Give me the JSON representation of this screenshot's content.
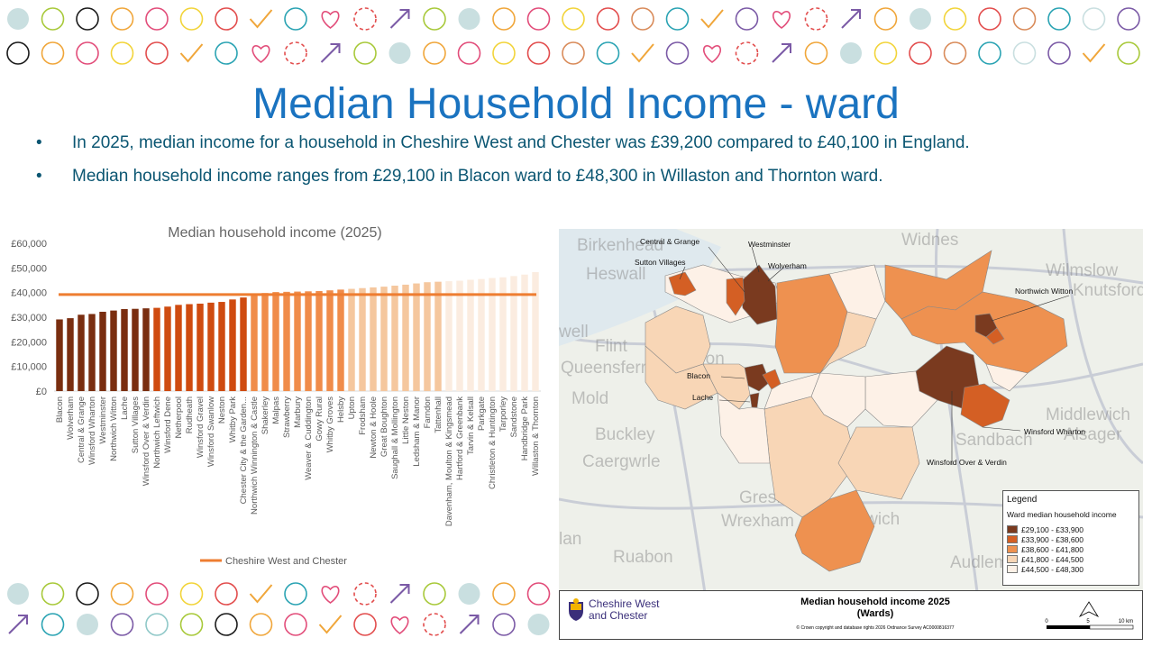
{
  "title": "Median Household Income - ward",
  "bullets": [
    "In 2025, median income for a household in Cheshire West and Chester was £39,200 compared to £40,100 in England.",
    "Median household income ranges from £29,100 in Blacon ward to £48,300 in Willaston and Thornton ward."
  ],
  "bullet_symbol": "•",
  "chart_data": {
    "type": "bar",
    "title": "Median household income (2025)",
    "xlabel": "",
    "ylabel": "",
    "ylim": [
      0,
      60000
    ],
    "yticks": [
      "£0",
      "£10,000",
      "£20,000",
      "£30,000",
      "£40,000",
      "£50,000",
      "£60,000"
    ],
    "categories": [
      "Blacon",
      "Wolverham",
      "Central & Grange",
      "Winsford Wharton",
      "Westminster",
      "Northwich Witton",
      "Lache",
      "Sutton Villages",
      "Winsford Over & Verdin",
      "Northwich Leftwich",
      "Winsford Dene",
      "Netherpool",
      "Rudheath",
      "Winsford Gravel",
      "Winsford Swanlow",
      "Neston",
      "Whitby Park",
      "Chester City & the Garden...",
      "Northwich Winnington & Castle",
      "Shakerley",
      "Malpas",
      "Strawberry",
      "Marbury",
      "Weaver & Cuddington",
      "Gowy Rural",
      "Whitby Groves",
      "Helsby",
      "Upton",
      "Frodsham",
      "Newton & Hoole",
      "Great Boughton",
      "Saughall & Mollington",
      "Little Neston",
      "Ledsham & Manor",
      "Farndon",
      "Tattenhall",
      "Davenham, Moulton & Kingsmead",
      "Hartford & Greenbank",
      "Tarvin & Kelsall",
      "Parkgate",
      "Christleton & Huntington",
      "Tarporley",
      "Sandstone",
      "Handbridge Park",
      "Willaston & Thornton"
    ],
    "values": [
      29100,
      29600,
      31000,
      31300,
      32200,
      32700,
      33300,
      33400,
      33600,
      33800,
      34300,
      35000,
      35300,
      35500,
      35900,
      36200,
      37200,
      38000,
      38900,
      39800,
      40200,
      40300,
      40400,
      40500,
      40600,
      40900,
      41200,
      41500,
      41800,
      42100,
      42400,
      42800,
      43200,
      43700,
      44200,
      44400,
      44600,
      44800,
      45200,
      45500,
      45900,
      46200,
      46700,
      47300,
      48300
    ],
    "colors": [
      "#7a2e10",
      "#7a2e10",
      "#7a2e10",
      "#7a2e10",
      "#7a2e10",
      "#7a2e10",
      "#7a2e10",
      "#7a2e10",
      "#7a2e10",
      "#cf4b10",
      "#cf4b10",
      "#cf4b10",
      "#cf4b10",
      "#cf4b10",
      "#cf4b10",
      "#cf4b10",
      "#cf4b10",
      "#cf4b10",
      "#f08c4a",
      "#f08c4a",
      "#f08c4a",
      "#f08c4a",
      "#f08c4a",
      "#f08c4a",
      "#f08c4a",
      "#f08c4a",
      "#f08c4a",
      "#f5c79e",
      "#f5c79e",
      "#f5c79e",
      "#f5c79e",
      "#f5c79e",
      "#f5c79e",
      "#f5c79e",
      "#f5c79e",
      "#f5c79e",
      "#fbece0",
      "#fbece0",
      "#fbece0",
      "#fbece0",
      "#fbece0",
      "#fbece0",
      "#fbece0",
      "#fbece0",
      "#fbece0"
    ],
    "reference_line": {
      "name": "Cheshire West and Chester",
      "value": 39200,
      "color": "#ee7d31"
    },
    "legend": "bottom",
    "grid": false
  },
  "map": {
    "background_labels": [
      "Birkenhead",
      "Widnes",
      "Heswall",
      "Wilmslow",
      "Knutsford",
      "Flint",
      "Queensferry",
      "Mold",
      "Buckley",
      "Caergwrle",
      "Gresford",
      "Wrexham",
      "Ruabon",
      "Nantwich",
      "Sandbach",
      "Alsager",
      "Middlewich",
      "Audlem",
      "Ell",
      "Pon",
      "well",
      "lan"
    ],
    "ward_labels": [
      "Central & Grange",
      "Westminster",
      "Sutton Villages",
      "Wolverham",
      "Northwich Witton",
      "Blacon",
      "Lache",
      "Winsford Wharton",
      "Winsford Over & Verdin"
    ],
    "legend": {
      "title": "Legend",
      "subtitle": "Ward median household income",
      "items": [
        {
          "label": "£29,100 - £33,900",
          "color": "#7a3a1f"
        },
        {
          "label": "£33,900 - £38,600",
          "color": "#d45f24"
        },
        {
          "label": "£38,600 - £41,800",
          "color": "#ee9150"
        },
        {
          "label": "£41,800 - £44,500",
          "color": "#f8d6b6"
        },
        {
          "label": "£44,500 - £48,300",
          "color": "#fdf1e7"
        }
      ]
    },
    "footer": {
      "logo_line1": "Cheshire West",
      "logo_line2": "and Chester",
      "title_line1": "Median household income 2025",
      "title_line2": "(Wards)",
      "copyright": "© Crown copyright and database rights 2026 Ordnance Survey AC0000816377",
      "scale_labels": [
        "0",
        "5",
        "10 km"
      ]
    }
  }
}
